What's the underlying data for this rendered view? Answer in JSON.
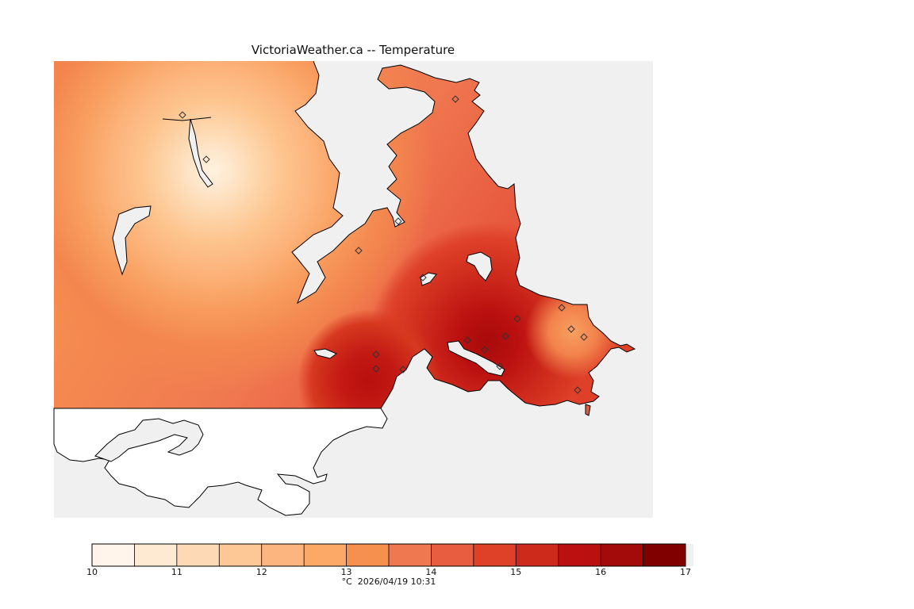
{
  "map": {
    "title": "VictoriaWeather.ca -- Temperature",
    "water_color": "#f0f0f0",
    "land_outline_color": "#000000",
    "station_marker": "diamond-icon"
  },
  "legend": {
    "ticks": [
      "10",
      "11",
      "12",
      "13",
      "14",
      "15",
      "16",
      "17"
    ],
    "colors": [
      "#fff5eb",
      "#fee9d3",
      "#fdd9b5",
      "#fdc896",
      "#fdb57f",
      "#fca867",
      "#f6904f",
      "#f07850",
      "#e85c40",
      "#de4028",
      "#ce2a1c",
      "#bb1010",
      "#a30a0a",
      "#800000"
    ],
    "unit": "°C",
    "timestamp": "2026/04/19 10:31"
  }
}
